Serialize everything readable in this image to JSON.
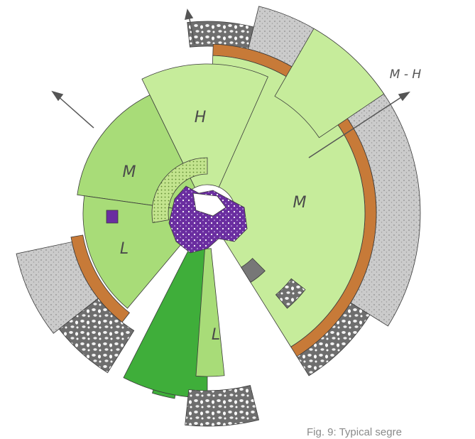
{
  "diagram": {
    "sector_labels": {
      "h": "H",
      "m_right": "M",
      "m_left": "M",
      "l_left": "L",
      "l_bottom": "L",
      "m_h": "M - H"
    }
  },
  "caption": "Fig. 9: Typical segre",
  "colors": {
    "light_green": "#c6ec9b",
    "mid_green": "#a8dc78",
    "dark_green": "#3fae3a",
    "orange": "#c77a38",
    "purple": "#6a2ea0",
    "light_gray": "#cbcbcb",
    "dark_gray": "#777777",
    "outline": "#3a3a3a"
  }
}
